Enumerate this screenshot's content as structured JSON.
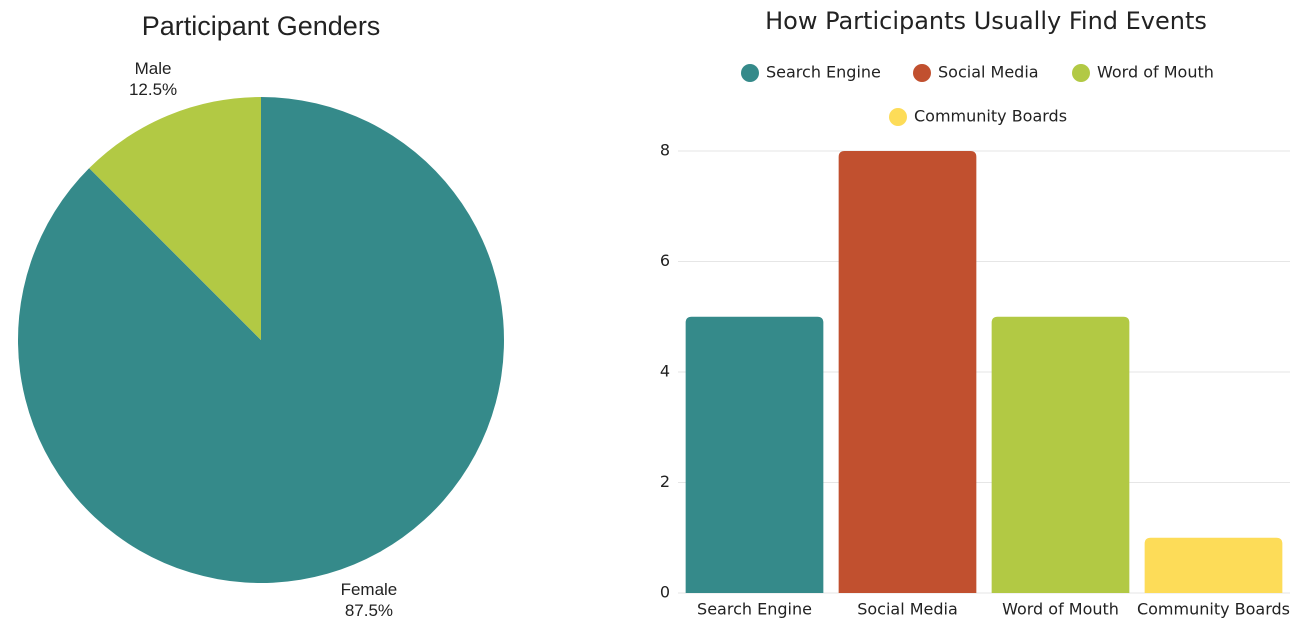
{
  "chart_data": [
    {
      "type": "pie",
      "title": "Participant Genders",
      "categories": [
        "Female",
        "Male"
      ],
      "values": [
        87.5,
        12.5
      ],
      "value_labels": [
        "87.5%",
        "12.5%"
      ],
      "colors": [
        "#358a8a",
        "#b2c944"
      ]
    },
    {
      "type": "bar",
      "title": "How Participants Usually Find Events",
      "categories": [
        "Search Engine",
        "Social Media",
        "Word of Mouth",
        "Community Boards"
      ],
      "values": [
        5,
        8,
        5,
        1
      ],
      "colors": [
        "#358a8a",
        "#c1502f",
        "#b2c944",
        "#fddc58"
      ],
      "ylim": [
        0,
        8
      ],
      "yticks": [
        0,
        2,
        4,
        6,
        8
      ],
      "grid": true,
      "legend": "top"
    }
  ]
}
